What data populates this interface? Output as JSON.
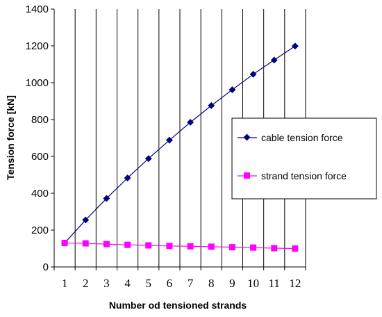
{
  "chart_data": {
    "type": "line",
    "title": "",
    "xlabel": "Number od tensioned strands",
    "ylabel": "Tension force [kN]",
    "x": [
      1,
      2,
      3,
      4,
      5,
      6,
      7,
      8,
      9,
      10,
      11,
      12
    ],
    "xlim": [
      0.5,
      12.5
    ],
    "ylim": [
      0,
      1400
    ],
    "yticks": [
      0,
      200,
      400,
      600,
      800,
      1000,
      1200,
      1400
    ],
    "grid": "vertical",
    "legend_position": "right",
    "series": [
      {
        "name": "cable tension force",
        "marker": "diamond",
        "color": "#000080",
        "values": [
          130,
          255,
          372,
          483,
          588,
          688,
          785,
          876,
          962,
          1046,
          1123,
          1199
        ]
      },
      {
        "name": "strand tension force",
        "marker": "square",
        "color": "#FF00FF",
        "values": [
          130,
          128,
          124,
          120,
          117,
          114,
          112,
          110,
          107,
          105,
          102,
          100
        ]
      }
    ]
  }
}
